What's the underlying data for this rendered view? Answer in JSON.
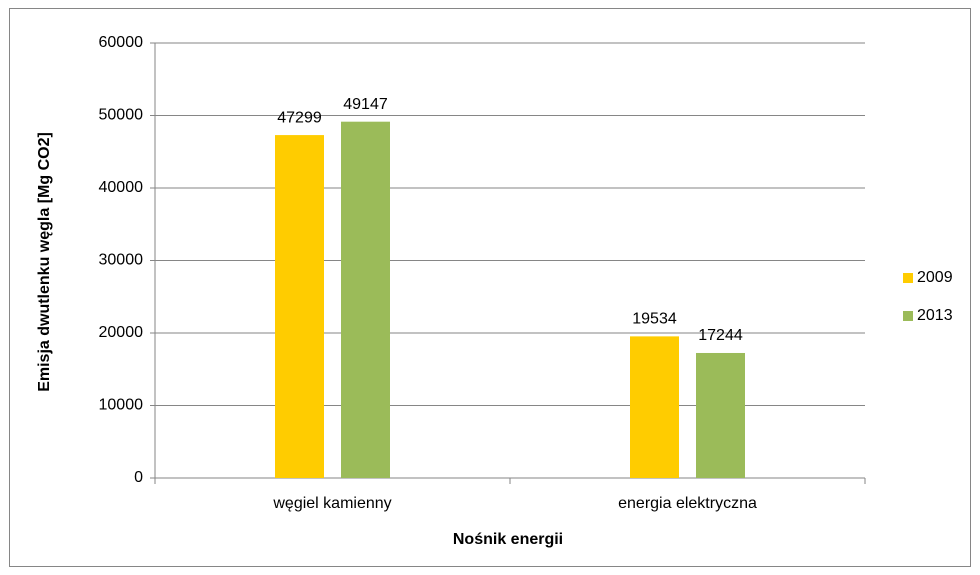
{
  "chart_data": {
    "type": "bar",
    "y_label": "Emisja dwutlenku węgla [Mg CO2]",
    "x_label": "Nośnik energii",
    "categories": [
      "węgiel kamienny",
      "energia elektryczna"
    ],
    "series": [
      {
        "name": "2009",
        "color": "#ffcc00",
        "values": [
          47299,
          19534
        ]
      },
      {
        "name": "2013",
        "color": "#9bbb59",
        "values": [
          49147,
          17244
        ]
      }
    ],
    "ylim": [
      0,
      60000
    ],
    "yticks": [
      0,
      10000,
      20000,
      30000,
      40000,
      50000,
      60000
    ],
    "grid": true,
    "legend": "right"
  }
}
